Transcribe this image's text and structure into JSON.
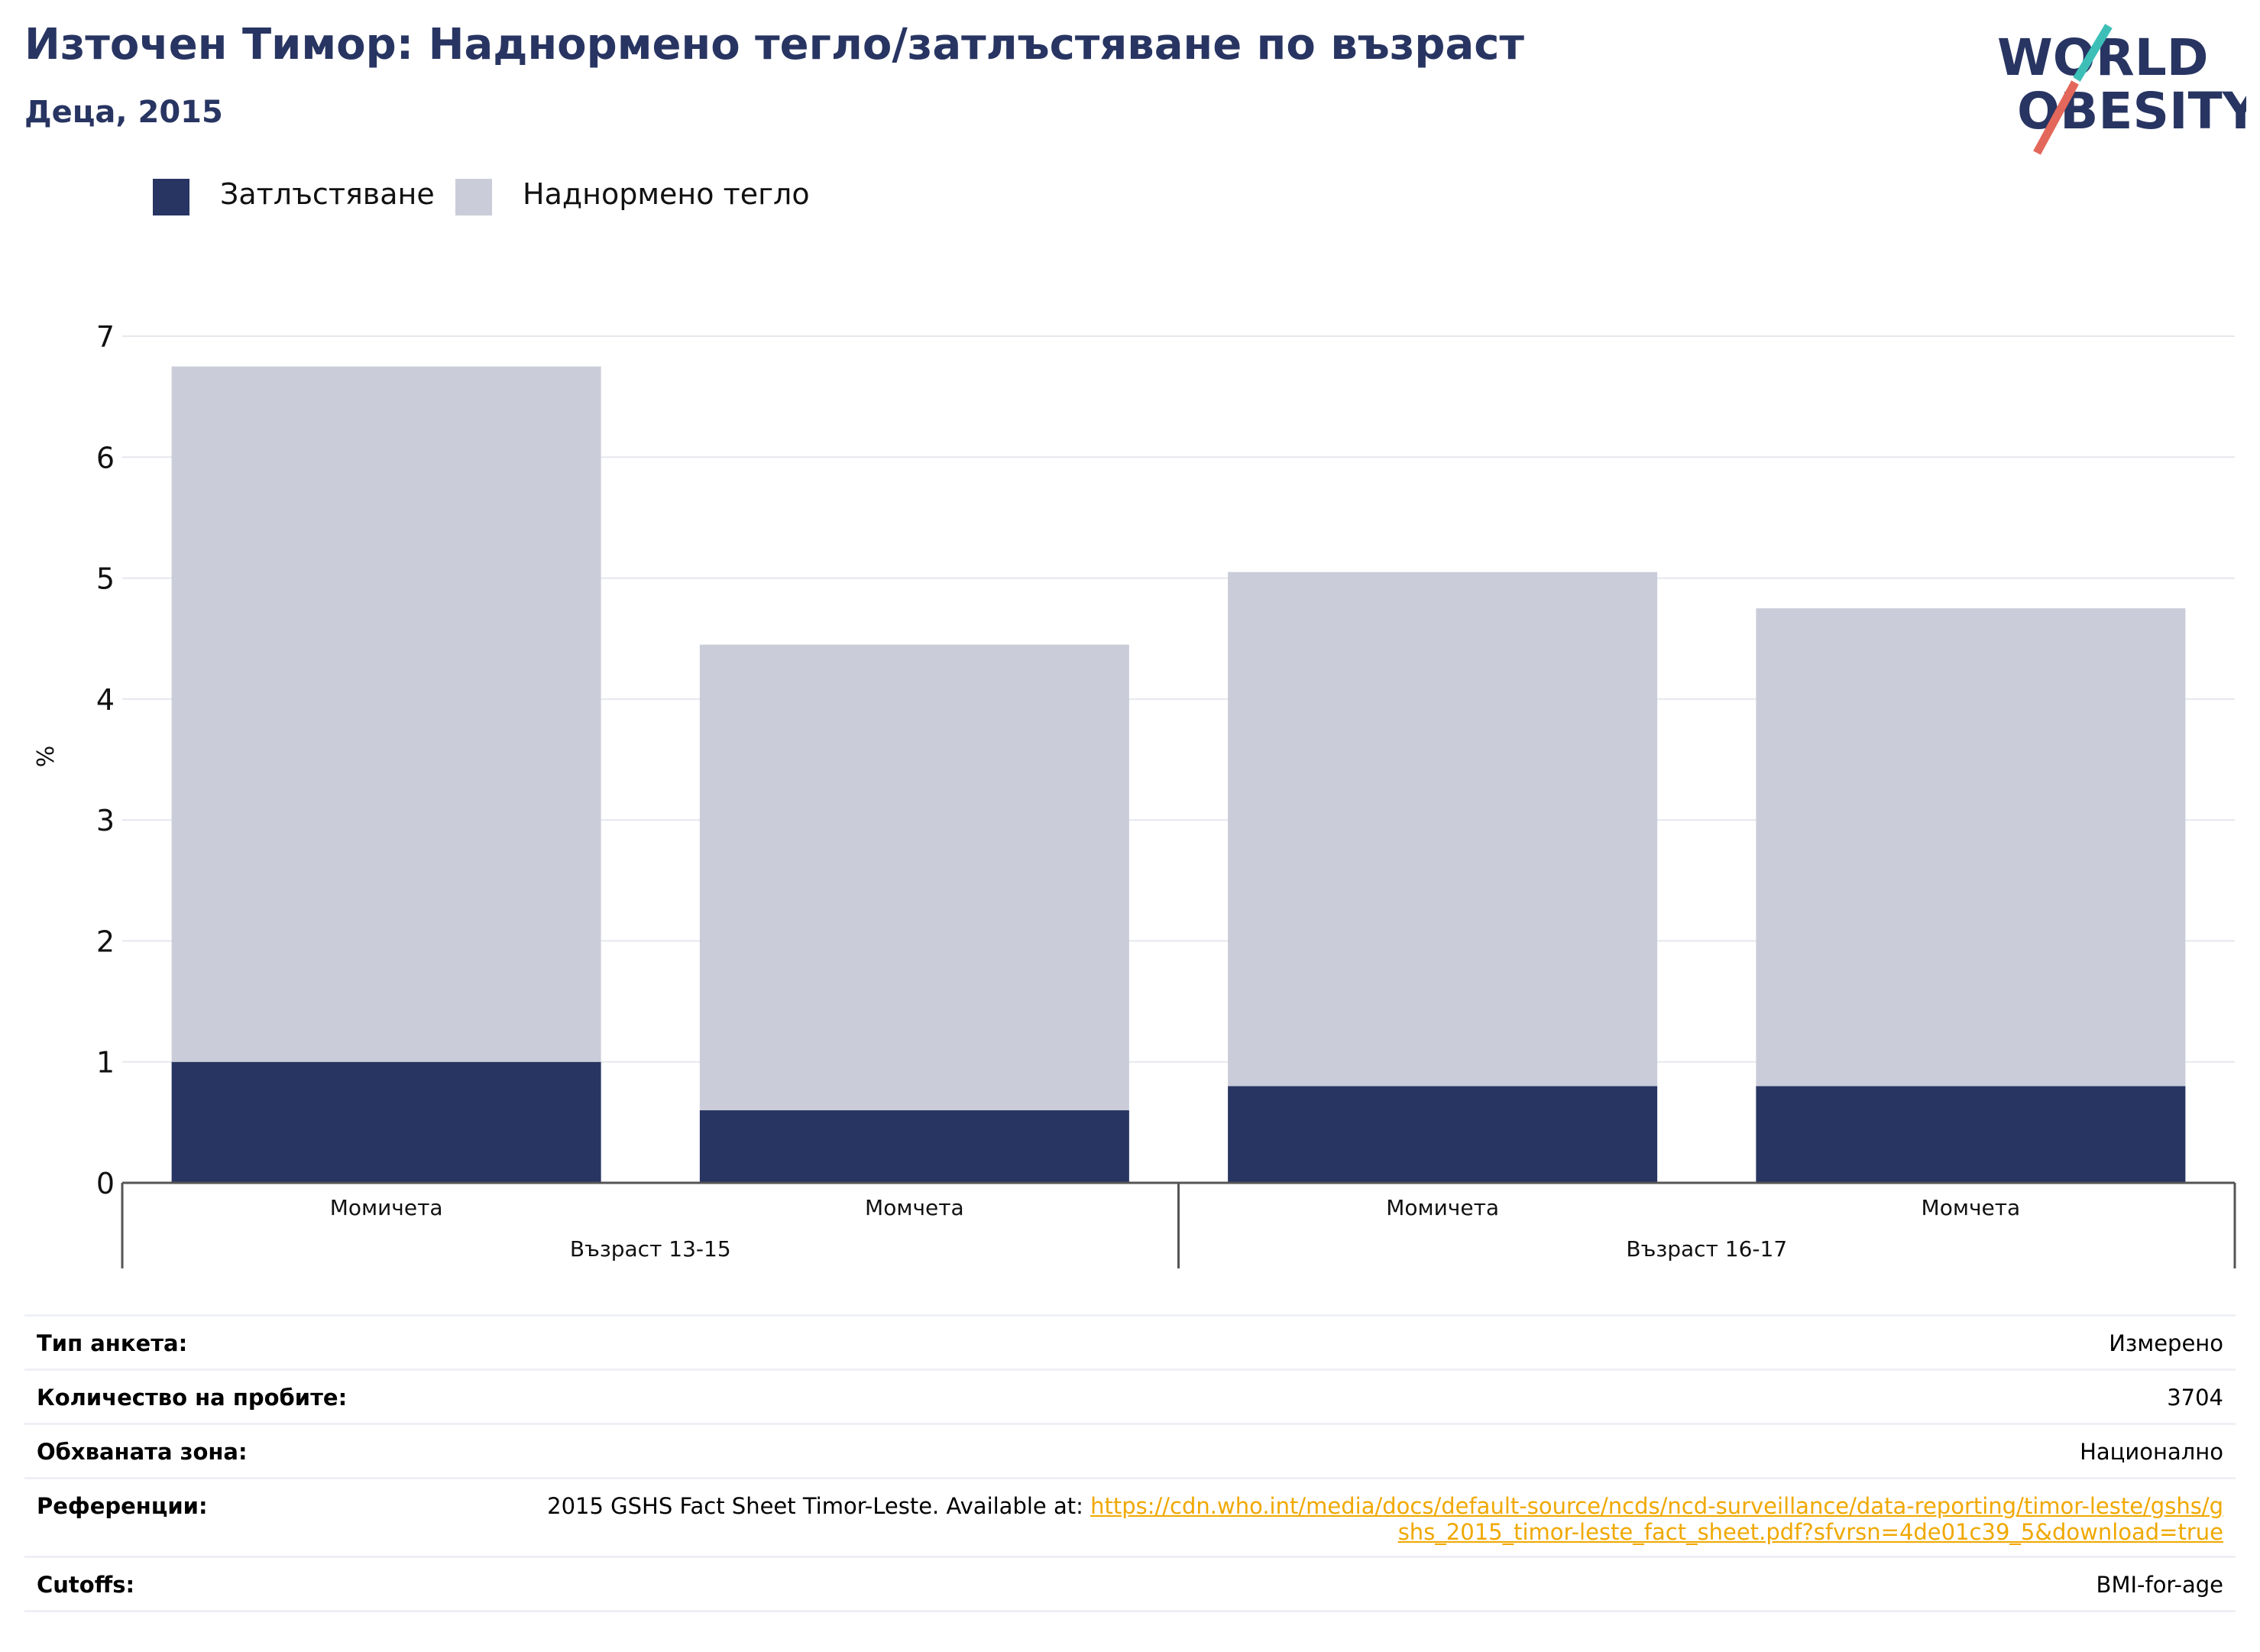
{
  "header": {
    "title": "Източен Тимор: Наднормено тегло/затлъстяване по възраст",
    "subtitle": "Деца, 2015"
  },
  "logo": {
    "line1": "WORLD",
    "line2": "OBESITY"
  },
  "colors": {
    "obesity": "#283562",
    "overweight": "#cacdd9",
    "title": "#283562",
    "link": "#f0a800",
    "logo_teal": "#3dbfb8",
    "logo_red": "#e3675a"
  },
  "legend": [
    {
      "label": "Затлъстяване",
      "color": "#283562"
    },
    {
      "label": "Наднормено тегло",
      "color": "#cacdd9"
    }
  ],
  "chart_data": {
    "type": "bar",
    "stacked": true,
    "categories": [
      "Момичета",
      "Момчета",
      "Момичета",
      "Момчета"
    ],
    "groups": [
      {
        "label": "Възраст 13-15",
        "categories": [
          0,
          1
        ]
      },
      {
        "label": "Възраст 16-17",
        "categories": [
          2,
          3
        ]
      }
    ],
    "series": [
      {
        "name": "Затлъстяване",
        "values": [
          1.0,
          0.6,
          0.8,
          0.8
        ]
      },
      {
        "name": "Наднормено тегло",
        "values": [
          5.75,
          3.85,
          4.25,
          3.95
        ]
      }
    ],
    "ylabel": "%",
    "ylim": [
      0,
      7
    ],
    "yticks": [
      0,
      1,
      2,
      3,
      4,
      5,
      6,
      7
    ],
    "grid": true
  },
  "info": {
    "survey_type": {
      "label": "Тип анкета:",
      "value": "Измерено"
    },
    "sample_size": {
      "label": "Количество на пробите:",
      "value": "3704"
    },
    "area": {
      "label": "Обхваната зона:",
      "value": "Национално"
    },
    "references": {
      "label": "Референции:",
      "text": "2015 GSHS Fact Sheet Timor-Leste. Available at: ",
      "link": "https://cdn.who.int/media/docs/default-source/ncds/ncd-surveillance/data-reporting/timor-leste/gshs/gshs_2015_timor-leste_fact_sheet.pdf?sfvrsn=4de01c39_5&download=true"
    },
    "cutoffs": {
      "label": "Cutoffs:",
      "value": "BMI-for-age"
    }
  }
}
